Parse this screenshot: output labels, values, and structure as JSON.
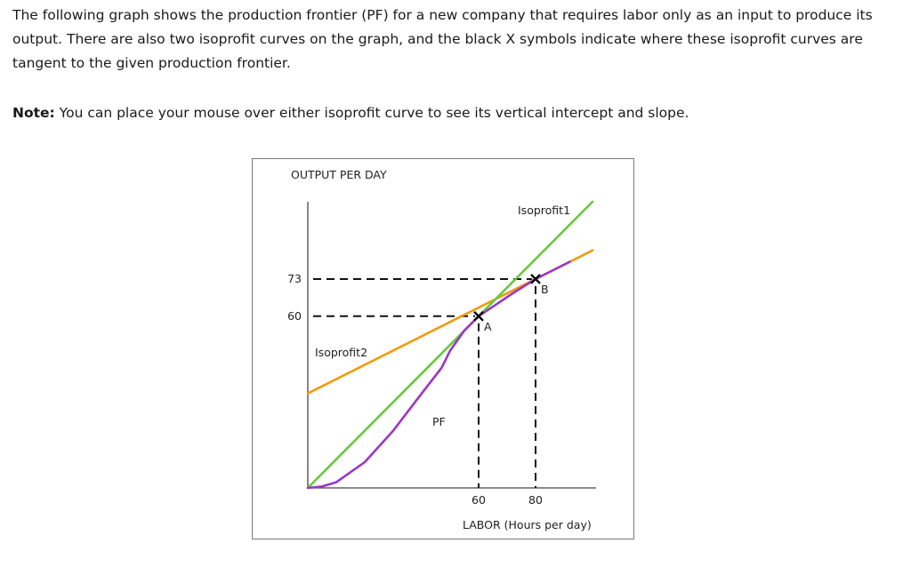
{
  "question": {
    "intro": "The following graph shows the production frontier (PF) for a new company that requires labor only as an input to produce its output. There are also two isoprofit curves on the graph, and the black X symbols indicate where these isoprofit curves are tangent to the given production frontier.",
    "note_label": "Note:",
    "note_text": " You can place your mouse over either isoprofit curve to see its vertical intercept and slope."
  },
  "chart_data": {
    "type": "line",
    "ylabel": "OUTPUT PER DAY",
    "xlabel": "LABOR (Hours per day)",
    "y_ticks": [
      73,
      60
    ],
    "x_ticks": [
      60,
      80
    ],
    "xlim": [
      0,
      100
    ],
    "ylim": [
      0,
      100
    ],
    "grid": false,
    "colors": {
      "pf": "#9a36c9",
      "isoprofit1": "#69c83c",
      "isoprofit2": "#f2990f",
      "axis": "#444444",
      "guide": "#111111"
    },
    "series": [
      {
        "name": "PF",
        "label": "PF",
        "points": [
          [
            0,
            0
          ],
          [
            5,
            0.5
          ],
          [
            10,
            2
          ],
          [
            20,
            9
          ],
          [
            30,
            20
          ],
          [
            40,
            33
          ],
          [
            47,
            42
          ],
          [
            50,
            48
          ],
          [
            55,
            55
          ],
          [
            60,
            60
          ],
          [
            66,
            64
          ],
          [
            72,
            68
          ],
          [
            80,
            73
          ],
          [
            84,
            75
          ],
          [
            92,
            79
          ]
        ]
      },
      {
        "name": "Isoprofit1",
        "label": "Isoprofit1",
        "points": [
          [
            0,
            0
          ],
          [
            100,
            100
          ]
        ]
      },
      {
        "name": "Isoprofit2",
        "label": "Isoprofit2",
        "points": [
          [
            0,
            33
          ],
          [
            100,
            83
          ]
        ]
      }
    ],
    "tangent_points": [
      {
        "label": "A",
        "x": 60,
        "y": 60,
        "marker": "x"
      },
      {
        "label": "B",
        "x": 80,
        "y": 73,
        "marker": "x"
      }
    ],
    "guides": [
      {
        "axis": "y",
        "value": 73,
        "to_x": 80
      },
      {
        "axis": "y",
        "value": 60,
        "to_x": 60
      },
      {
        "axis": "x",
        "value": 60,
        "to_y": 60
      },
      {
        "axis": "x",
        "value": 80,
        "to_y": 73
      }
    ]
  }
}
